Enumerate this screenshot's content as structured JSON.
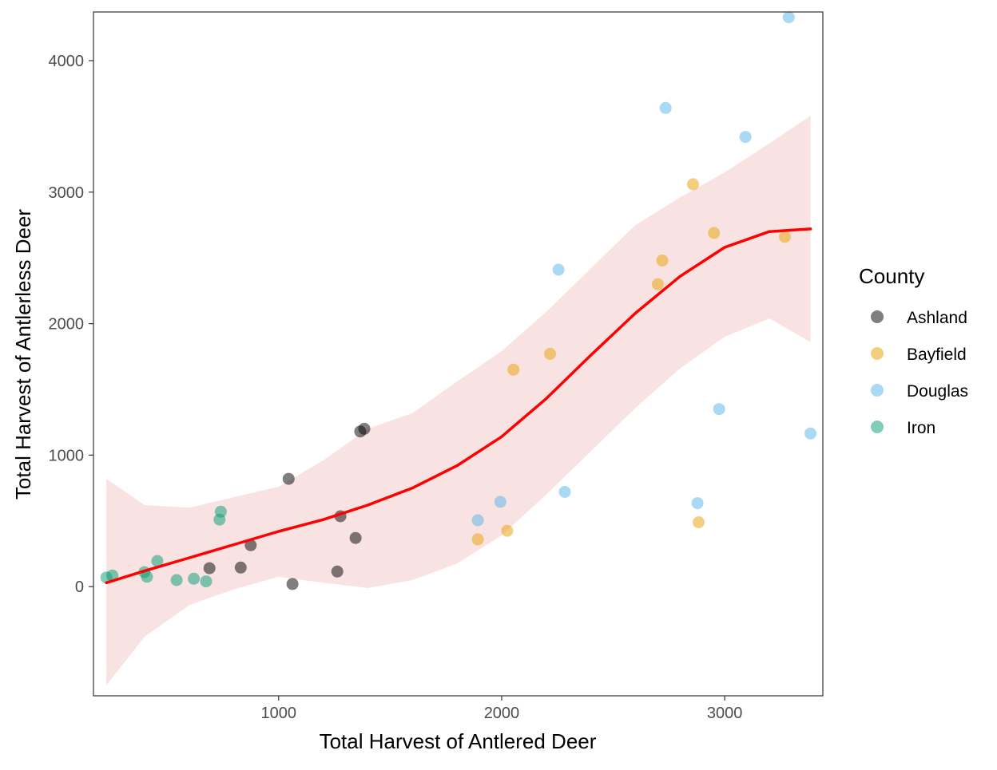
{
  "chart_data": {
    "type": "scatter",
    "xlabel": "Total Harvest of Antlered Deer",
    "ylabel": "Total Harvest of Antlerless Deer",
    "xlim": [
      170,
      3440
    ],
    "ylim": [
      -830,
      4370
    ],
    "x_ticks": [
      1000,
      2000,
      3000
    ],
    "x_tick_labels": [
      "1000",
      "2000",
      "3000"
    ],
    "y_ticks": [
      0,
      1000,
      2000,
      3000,
      4000
    ],
    "y_tick_labels": [
      "0",
      "1000",
      "2000",
      "3000",
      "4000"
    ],
    "grid": false,
    "legend": {
      "title": "County",
      "position": "right"
    },
    "series": [
      {
        "name": "Ashland",
        "color": "#000000",
        "points": [
          [
            1045,
            820
          ],
          [
            1062,
            20
          ],
          [
            1263,
            115
          ],
          [
            1277,
            535
          ],
          [
            1345,
            370
          ],
          [
            1366,
            1180
          ],
          [
            1384,
            1200
          ],
          [
            690,
            140
          ],
          [
            830,
            145
          ],
          [
            875,
            315
          ]
        ]
      },
      {
        "name": "Bayfield",
        "color": "#E69F00",
        "points": [
          [
            1893,
            360
          ],
          [
            2025,
            425
          ],
          [
            2053,
            1650
          ],
          [
            2217,
            1770
          ],
          [
            2700,
            2300
          ],
          [
            2720,
            2480
          ],
          [
            2858,
            3060
          ],
          [
            2883,
            490
          ],
          [
            2952,
            2690
          ],
          [
            3270,
            2660
          ]
        ]
      },
      {
        "name": "Douglas",
        "color": "#56B4E9",
        "points": [
          [
            1893,
            505
          ],
          [
            1994,
            645
          ],
          [
            2255,
            2410
          ],
          [
            2283,
            720
          ],
          [
            2735,
            3640
          ],
          [
            2878,
            635
          ],
          [
            2975,
            1350
          ],
          [
            3093,
            3420
          ],
          [
            3287,
            4330
          ],
          [
            3385,
            1165
          ]
        ]
      },
      {
        "name": "Iron",
        "color": "#009E73",
        "points": [
          [
            228,
            70
          ],
          [
            255,
            85
          ],
          [
            398,
            110
          ],
          [
            410,
            75
          ],
          [
            456,
            195
          ],
          [
            543,
            50
          ],
          [
            620,
            60
          ],
          [
            675,
            40
          ],
          [
            735,
            510
          ],
          [
            741,
            570
          ]
        ]
      }
    ],
    "smooth": {
      "color": "#FF0000",
      "band_color": "#F8E2E2",
      "x": [
        228,
        400,
        600,
        800,
        1000,
        1200,
        1400,
        1600,
        1800,
        2000,
        2200,
        2400,
        2600,
        2800,
        3000,
        3200,
        3385
      ],
      "y": [
        30,
        120,
        220,
        320,
        420,
        510,
        620,
        750,
        920,
        1140,
        1430,
        1760,
        2080,
        2360,
        2580,
        2700,
        2720
      ],
      "lower": [
        -750,
        -380,
        -140,
        -20,
        75,
        30,
        -10,
        50,
        175,
        390,
        700,
        1030,
        1360,
        1660,
        1900,
        2040,
        1860
      ],
      "upper": [
        820,
        620,
        600,
        680,
        760,
        960,
        1200,
        1320,
        1560,
        1790,
        2090,
        2420,
        2750,
        2960,
        3150,
        3370,
        3580
      ]
    }
  }
}
